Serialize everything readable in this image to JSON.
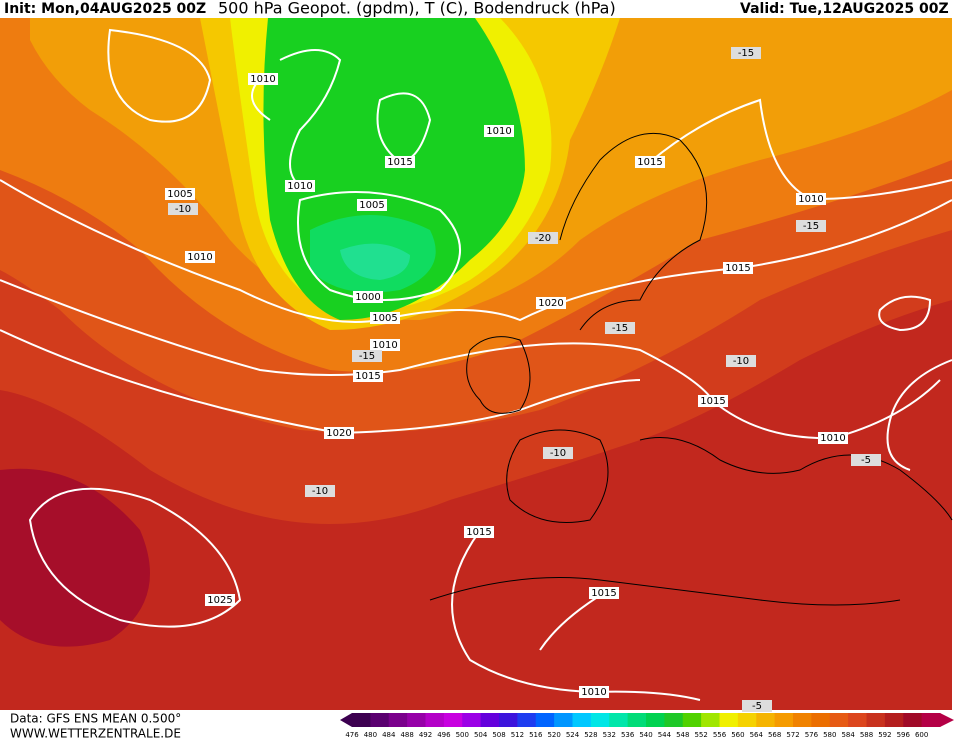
{
  "header": {
    "init": "Init: Mon,04AUG2025 00Z",
    "title": "500 hPa Geopot. (gpdm), T (C), Bodendruck (hPa)",
    "valid": "Valid: Tue,12AUG2025 00Z"
  },
  "map": {
    "labels": [
      1010,
      1010,
      1015,
      1015,
      1010,
      1005,
      -10,
      1005,
      1010,
      -15,
      -20,
      1010,
      1015,
      1000,
      1020,
      1005,
      -15,
      1010,
      -15,
      -10,
      1015,
      1015,
      1020,
      1010,
      -10,
      -5,
      -10,
      1015,
      1015,
      1025,
      1010,
      -5,
      -15
    ]
  },
  "colorbar": {
    "values": [
      476,
      480,
      484,
      488,
      492,
      496,
      500,
      504,
      508,
      512,
      516,
      520,
      524,
      528,
      532,
      536,
      540,
      544,
      548,
      552,
      556,
      560,
      564,
      568,
      572,
      576,
      580,
      584,
      588,
      592,
      596,
      600
    ],
    "colors": [
      "#3c0050",
      "#5a0070",
      "#7a008c",
      "#9600a8",
      "#b400c8",
      "#c800e0",
      "#9b00e6",
      "#6400dc",
      "#3c14dc",
      "#1e3cf0",
      "#0064ff",
      "#0096ff",
      "#00c8ff",
      "#00e6e6",
      "#00e6aa",
      "#00dc78",
      "#00d250",
      "#1ec828",
      "#50d200",
      "#a0e600",
      "#f0f000",
      "#f5d200",
      "#f5b400",
      "#f59b00",
      "#f08200",
      "#eb6e00",
      "#e65a14",
      "#dc461e",
      "#c8321e",
      "#b41e1e",
      "#a00a28",
      "#b40046"
    ]
  },
  "footer": {
    "data": "Data: GFS ENS MEAN 0.500°",
    "site": "WWW.WETTERZENTRALE.DE"
  }
}
